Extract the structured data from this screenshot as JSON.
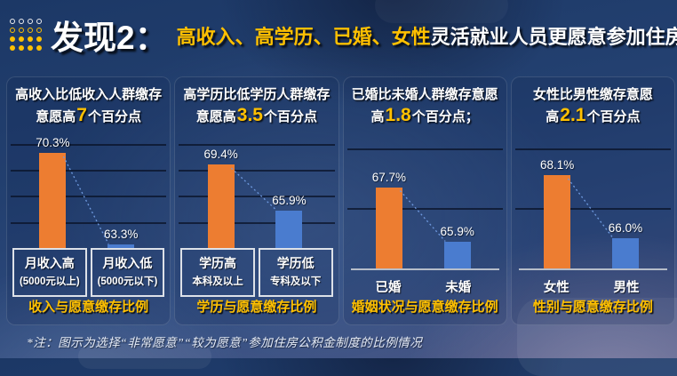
{
  "header": {
    "title": "发现2：",
    "subtitle_highlight": "高收入、高学历、已婚、女性",
    "subtitle_rest": "灵活就业人员更愿意参加住房公积金制度"
  },
  "footnote": "*注：图示为选择“非常愿意”“较为愿意”参加住房公积金制度的比例情况",
  "colors": {
    "orange_bar": "#ED7D31",
    "blue_bar": "#4A7CCF",
    "highlight_gold": "#FFC000",
    "background_navy": "#234070",
    "connector_blue": "#6f9ae0"
  },
  "chart_data": [
    {
      "type": "bar",
      "heading": {
        "line1": "高收入比低收入人群缴存",
        "line2_pre": "意愿高",
        "line2_num": "7",
        "line2_post": "个百分点"
      },
      "categories": [
        "月收入高",
        "月收入低"
      ],
      "category_sublabels": [
        "(5000元以上)",
        "(5000元以下)"
      ],
      "values": [
        70.3,
        63.3
      ],
      "value_labels": [
        "70.3%",
        "63.3%"
      ],
      "series_colors": [
        "#ED7D31",
        "#4A7CCF"
      ],
      "ylim": [
        63,
        71.6
      ],
      "gridlines": [
        65,
        67,
        69,
        71
      ],
      "grid": "on",
      "boxed_labels": true,
      "caption": "收入与愿意缴存比例"
    },
    {
      "type": "bar",
      "heading": {
        "line1": "高学历比低学历人群缴存",
        "line2_pre": "意愿高",
        "line2_num": "3.5",
        "line2_post": "个百分点"
      },
      "categories": [
        "学历高",
        "学历低"
      ],
      "category_sublabels": [
        "本科及以上",
        "专科及以下"
      ],
      "values": [
        69.4,
        65.9
      ],
      "value_labels": [
        "69.4%",
        "65.9%"
      ],
      "series_colors": [
        "#ED7D31",
        "#4A7CCF"
      ],
      "ylim": [
        63,
        71.6
      ],
      "gridlines": [
        65,
        67,
        69,
        71
      ],
      "grid": "on",
      "boxed_labels": true,
      "caption": "学历与愿意缴存比例"
    },
    {
      "type": "bar",
      "heading": {
        "line1": "已婚比未婚人群缴存意愿",
        "line2_pre": "高",
        "line2_num": "1.8",
        "line2_post": "个百分点；"
      },
      "categories": [
        "已婚",
        "未婚"
      ],
      "category_sublabels": [],
      "values": [
        67.7,
        65.9
      ],
      "value_labels": [
        "67.7%",
        "65.9%"
      ],
      "series_colors": [
        "#ED7D31",
        "#4A7CCF"
      ],
      "ylim": [
        65,
        69.4
      ],
      "gridlines": [
        67,
        69
      ],
      "grid": "on",
      "boxed_labels": false,
      "caption": "婚姻状况与愿意缴存比例"
    },
    {
      "type": "bar",
      "heading": {
        "line1": "女性比男性缴存意愿",
        "line2_pre": "高",
        "line2_num": "2.1",
        "line2_post": "个百分点"
      },
      "categories": [
        "女性",
        "男性"
      ],
      "category_sublabels": [],
      "values": [
        68.1,
        66.0
      ],
      "value_labels": [
        "68.1%",
        "66.0%"
      ],
      "series_colors": [
        "#ED7D31",
        "#4A7CCF"
      ],
      "ylim": [
        65,
        69.4
      ],
      "gridlines": [
        67,
        69
      ],
      "grid": "on",
      "boxed_labels": false,
      "caption": "性别与愿意缴存比例"
    }
  ]
}
